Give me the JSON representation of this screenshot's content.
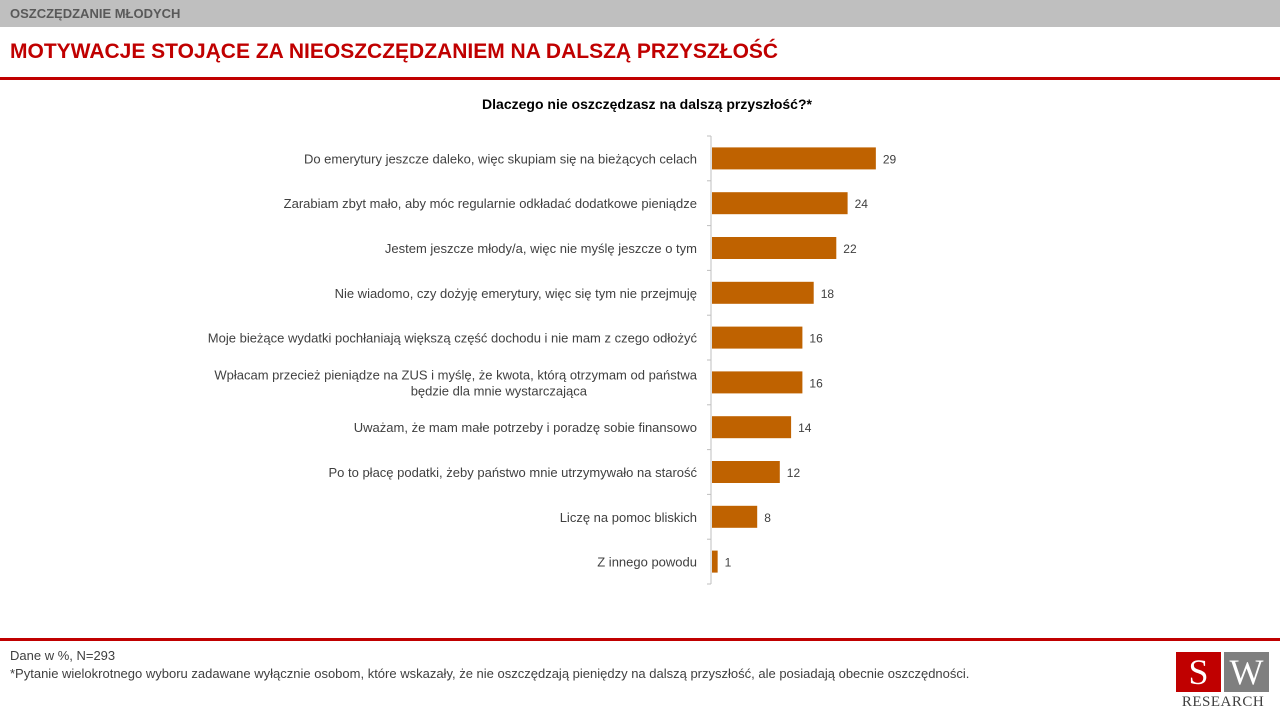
{
  "header": {
    "section_label": "OSZCZĘDZANIE MŁODYCH",
    "title": "MOTYWACJE STOJĄCE ZA NIEOSZCZĘDZANIEM NA DALSZĄ PRZYSZŁOŚĆ"
  },
  "chart_data": {
    "type": "bar",
    "orientation": "horizontal",
    "title": "Dlaczego nie oszczędzasz na dalszą przyszłość?*",
    "categories": [
      "Do emerytury jeszcze daleko, więc skupiam się na bieżących celach",
      "Zarabiam zbyt mało, aby móc regularnie odkładać dodatkowe pieniądze",
      "Jestem jeszcze młody/a, więc nie myślę jeszcze o tym",
      "Nie wiadomo, czy dożyję emerytury, więc się tym nie przejmuję",
      "Moje bieżące wydatki pochłaniają większą część dochodu i nie mam z czego odłożyć",
      "Wpłacam przecież pieniądze na ZUS i myślę, że kwota, którą otrzymam od państwa będzie dla mnie wystarczająca",
      "Uważam, że mam małe potrzeby i poradzę sobie finansowo",
      "Po to płacę podatki, żeby państwo mnie utrzymywało na starość",
      "Liczę na pomoc bliskich",
      "Z innego powodu"
    ],
    "values": [
      29,
      24,
      22,
      18,
      16,
      16,
      14,
      12,
      8,
      1
    ],
    "xlim": [
      0,
      100
    ],
    "bar_color": "#bf6200",
    "grid": false,
    "legend": "none"
  },
  "footer": {
    "note1": "Dane w %, N=293",
    "note2": "*Pytanie wielokrotnego wyboru zadawane wyłącznie osobom, które wskazały, że nie oszczędzają pieniędzy na dalszą przyszłość, ale posiadają obecnie oszczędności.",
    "logo_left": "S",
    "logo_right": "W",
    "logo_text": "RESEARCH"
  },
  "colors": {
    "accent": "#c00000",
    "bar": "#bf6200",
    "topbar": "#bfbfbf"
  }
}
